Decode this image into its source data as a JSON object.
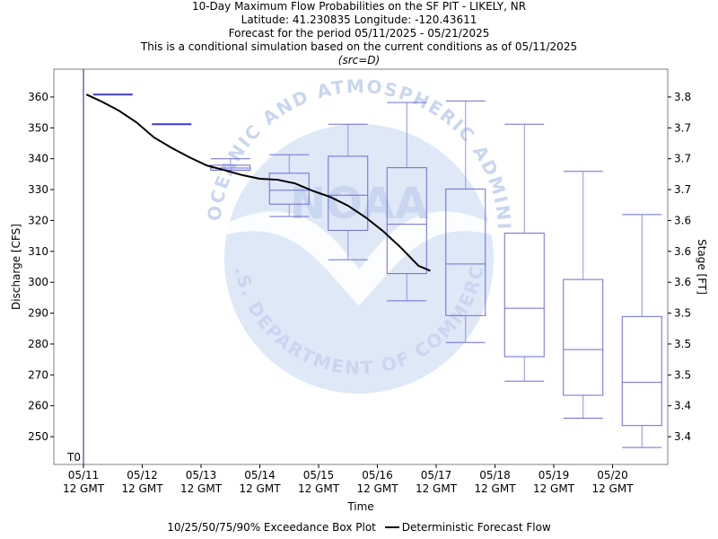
{
  "chart_data": {
    "type": "box",
    "title_lines": [
      "10-Day Maximum Flow Probabilities on the SF PIT - LIKELY, NR",
      "Latitude: 41.230835 Longitude: -120.43611",
      "Forecast for the period 05/11/2025 - 05/21/2025",
      "This is a conditional simulation based on the current conditions as of 05/11/2025"
    ],
    "subtitle": "(src=D)",
    "xlabel": "Time",
    "ylabel": "Discharge [CFS]",
    "y2label": "Stage [FT]",
    "x_ticks": [
      "05/11",
      "05/12",
      "05/13",
      "05/14",
      "05/15",
      "05/16",
      "05/17",
      "05/18",
      "05/19",
      "05/20"
    ],
    "x_tick_sub": "12 GMT",
    "y_ticks": [
      250,
      260,
      270,
      280,
      290,
      300,
      310,
      320,
      330,
      340,
      350,
      360
    ],
    "y2_ticks": [
      "3.4",
      "3.4",
      "3.5",
      "3.5",
      "3.5",
      "3.6",
      "3.6",
      "3.6",
      "3.7",
      "3.7",
      "3.7",
      "3.8"
    ],
    "ylim": [
      241,
      369
    ],
    "t0_label": "T0",
    "watermark": {
      "top_text": "NATIONAL OCEANIC AND ATMOSPHERIC ADMINISTRATION",
      "bottom_text": "U.S. DEPARTMENT OF COMMERCE",
      "center_text": "NOAA"
    },
    "boxes": [
      {
        "day": 0.5,
        "p10": 360.8,
        "p25": 360.8,
        "p50": 360.8,
        "p75": 360.8,
        "p90": 360.8
      },
      {
        "day": 1.5,
        "p10": 351.2,
        "p25": 351.2,
        "p50": 351.2,
        "p75": 351.2,
        "p90": 351.2
      },
      {
        "day": 2.5,
        "p10": 336.3,
        "p25": 336.3,
        "p50": 337.0,
        "p75": 337.9,
        "p90": 340.0
      },
      {
        "day": 3.5,
        "p10": 321.3,
        "p25": 325.3,
        "p50": 329.8,
        "p75": 335.3,
        "p90": 341.3
      },
      {
        "day": 4.5,
        "p10": 307.3,
        "p25": 316.8,
        "p50": 328.2,
        "p75": 340.8,
        "p90": 351.2
      },
      {
        "day": 5.5,
        "p10": 294.0,
        "p25": 302.8,
        "p50": 318.8,
        "p75": 337.1,
        "p90": 358.2
      },
      {
        "day": 6.5,
        "p10": 280.5,
        "p25": 289.2,
        "p50": 305.9,
        "p75": 330.2,
        "p90": 358.7
      },
      {
        "day": 7.5,
        "p10": 268.0,
        "p25": 275.9,
        "p50": 291.6,
        "p75": 315.9,
        "p90": 351.2
      },
      {
        "day": 8.5,
        "p10": 256.0,
        "p25": 263.4,
        "p50": 278.2,
        "p75": 300.9,
        "p90": 335.9
      },
      {
        "day": 9.5,
        "p10": 246.5,
        "p25": 253.6,
        "p50": 267.6,
        "p75": 288.9,
        "p90": 321.9
      }
    ],
    "deterministic": {
      "x": [
        0.05,
        0.3,
        0.6,
        0.9,
        1.2,
        1.5,
        1.8,
        2.1,
        2.4,
        2.7,
        3.0,
        3.3,
        3.6,
        3.9,
        4.2,
        4.5,
        4.8,
        5.1,
        5.4,
        5.7,
        5.9
      ],
      "y": [
        360.8,
        358.6,
        355.6,
        351.8,
        346.9,
        343.5,
        340.5,
        337.8,
        336.3,
        334.7,
        333.5,
        333.2,
        332.0,
        329.6,
        327.6,
        324.8,
        321.0,
        316.5,
        311.2,
        305.3,
        303.7
      ]
    },
    "legend": {
      "box_label": "10/25/50/75/90% Exceedance Box Plot",
      "line_label": "Deterministic Forecast Flow"
    },
    "colors": {
      "box": "#6b6bd9",
      "whisker": "#9090e8",
      "flat_box": "#3a3ad9",
      "t0_line": "#1a1aaa",
      "line": "#000000",
      "watermark": "#dfe8f7",
      "watermark_text": "#c9d6f0"
    }
  }
}
